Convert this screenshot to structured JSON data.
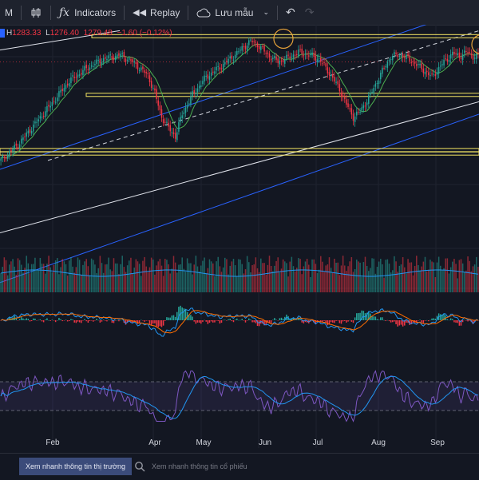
{
  "toolbar": {
    "interval": "M",
    "indicators_label": "Indicators",
    "replay_label": "Replay",
    "save_label": "Lưu mẫu"
  },
  "ohlc": {
    "h_label": "H",
    "h_value": "1283.33",
    "l_label": "L",
    "l_value": "1276.40",
    "c_value": "1279.48",
    "change": "−1.60 (−0.12%)"
  },
  "colors": {
    "background": "#131722",
    "up": "#26a69a",
    "down": "#f23645",
    "ma": "#4caf50",
    "channel": "#2962ff",
    "support_line": "#f5e663",
    "rsi": "#7e57c2",
    "rsi_ma": "#2196f3",
    "macd": "#2196f3",
    "signal": "#ff6d00"
  },
  "chart_data": {
    "type": "candlestick",
    "x_ticks": [
      "Feb",
      "Apr",
      "May",
      "Jun",
      "Jul",
      "Aug",
      "Sep"
    ],
    "y_range": [
      1050,
      1300
    ],
    "levels": [
      1295,
      1210,
      1130,
      1125
    ],
    "pivots": [
      [
        0,
        1115
      ],
      [
        10,
        1138
      ],
      [
        20,
        1168
      ],
      [
        30,
        1198
      ],
      [
        40,
        1230
      ],
      [
        50,
        1248
      ],
      [
        60,
        1262
      ],
      [
        70,
        1268
      ],
      [
        78,
        1256
      ],
      [
        86,
        1238
      ],
      [
        90,
        1212
      ],
      [
        94,
        1178
      ],
      [
        98,
        1162
      ],
      [
        102,
        1150
      ],
      [
        106,
        1182
      ],
      [
        112,
        1210
      ],
      [
        120,
        1236
      ],
      [
        128,
        1250
      ],
      [
        134,
        1262
      ],
      [
        140,
        1275
      ],
      [
        146,
        1288
      ],
      [
        150,
        1283
      ],
      [
        156,
        1268
      ],
      [
        162,
        1258
      ],
      [
        168,
        1264
      ],
      [
        174,
        1272
      ],
      [
        180,
        1268
      ],
      [
        186,
        1262
      ],
      [
        192,
        1242
      ],
      [
        198,
        1218
      ],
      [
        202,
        1196
      ],
      [
        206,
        1178
      ],
      [
        210,
        1186
      ],
      [
        216,
        1210
      ],
      [
        222,
        1240
      ],
      [
        228,
        1266
      ],
      [
        234,
        1268
      ],
      [
        240,
        1260
      ],
      [
        246,
        1248
      ],
      [
        252,
        1236
      ],
      [
        258,
        1255
      ],
      [
        264,
        1270
      ],
      [
        268,
        1266
      ],
      [
        272,
        1272
      ],
      [
        276,
        1266
      ]
    ],
    "rsi_range": [
      0,
      100
    ],
    "rsi_bands": [
      70,
      30
    ]
  },
  "bottombar": {
    "market_button": "Xem nhanh thông tin thị trường",
    "stock_placeholder": "Xem nhanh thông tin cổ phiếu"
  }
}
